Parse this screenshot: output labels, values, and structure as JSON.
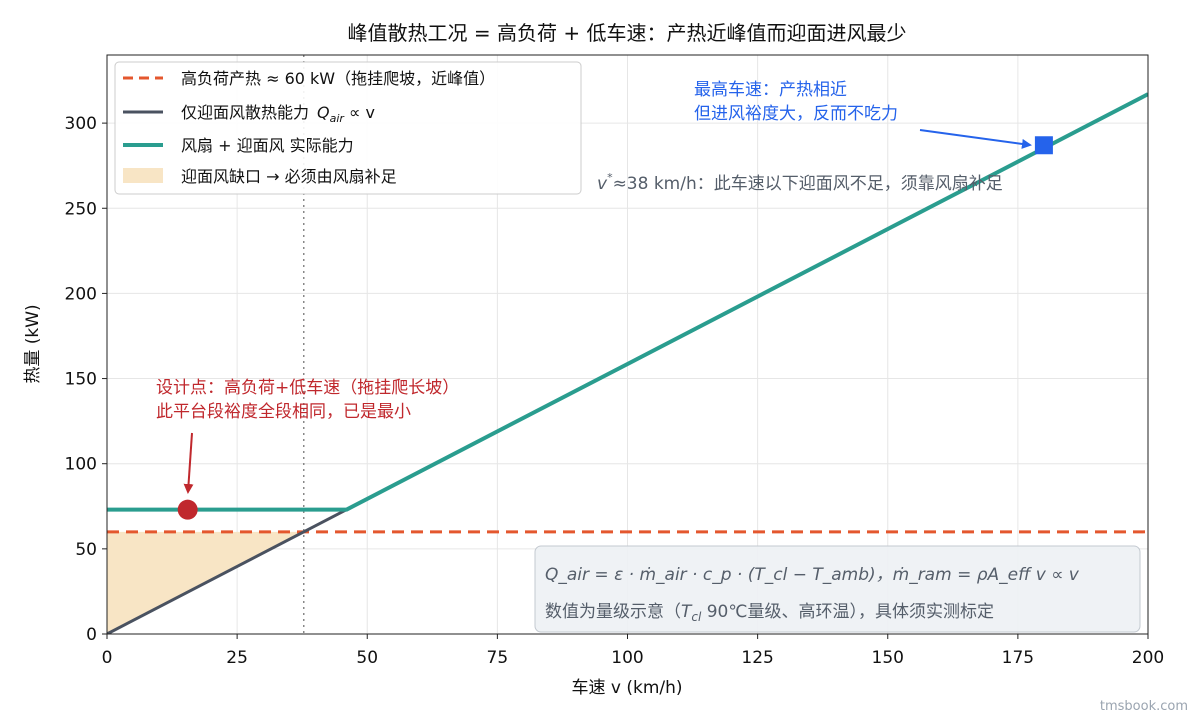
{
  "chart_data": {
    "type": "line",
    "title": "峰值散热工况 = 高负荷 + 低车速：产热近峰值而迎面进风最少",
    "xlabel": "车速 v (km/h)",
    "ylabel": "热量 (kW)",
    "xlim": [
      0,
      200
    ],
    "ylim": [
      0,
      340
    ],
    "xticks": [
      0,
      25,
      50,
      75,
      100,
      125,
      150,
      175,
      200
    ],
    "yticks": [
      0,
      50,
      100,
      150,
      200,
      250,
      300
    ],
    "grid": true,
    "legend_position": "top-left",
    "series": [
      {
        "name": "高负荷产热 ≈ 60 kW（拖挂爬坡，近峰值）",
        "style": "dashed",
        "color": "#e4572e",
        "x": [
          0,
          200
        ],
        "y": [
          60,
          60
        ]
      },
      {
        "name": "仅迎面风散热能力",
        "name_math": "Q",
        "name_math_sub": "air",
        "name_math_tail": " ∝ v",
        "style": "solid",
        "color": "#4a5260",
        "x": [
          0,
          46
        ],
        "y": [
          0,
          73
        ]
      },
      {
        "name": "风扇 + 迎面风 实际能力",
        "style": "solid",
        "color": "#2a9d8f",
        "x": [
          0,
          46,
          200
        ],
        "y": [
          73,
          73,
          317
        ]
      },
      {
        "name": "迎面风缺口 → 必须由风扇补足",
        "style": "area",
        "color": "#f8e5c5",
        "x": [
          0,
          37.8
        ],
        "y": [
          0,
          60
        ]
      }
    ],
    "vline": {
      "x": 37.8,
      "style": "dotted",
      "color": "#888888"
    },
    "markers": [
      {
        "x": 15.5,
        "y": 73,
        "shape": "circle",
        "color": "#c0282d"
      },
      {
        "x": 180,
        "y": 287,
        "shape": "square",
        "color": "#2563eb"
      }
    ],
    "annotations": {
      "design_point": {
        "lines": [
          "设计点：高负荷+低车速（拖挂爬长坡）",
          "此平台段裕度全段相同，已是最小"
        ],
        "color": "#c0282d"
      },
      "max_speed": {
        "lines": [
          "最高车速：产热相近",
          "但进风裕度大，反而不吃力"
        ],
        "color": "#2563eb"
      },
      "vstar": {
        "symbol": "v",
        "sup": "*",
        "text": "≈38 km/h：此车速以下迎面风不足，须靠风扇补足",
        "color": "#555e6a"
      }
    },
    "formula_box": {
      "line1": "Q_air = ε · ṁ_air · c_p · (T_cl − T_amb)，ṁ_ram = ρA_eff v ∝ v",
      "line2_pre": "数值为量级示意（",
      "line2_math": "T",
      "line2_sub": "cl",
      "line2_post": " 90℃量级、高环温），具体须实测标定"
    }
  },
  "watermark": "tmsbook.com"
}
